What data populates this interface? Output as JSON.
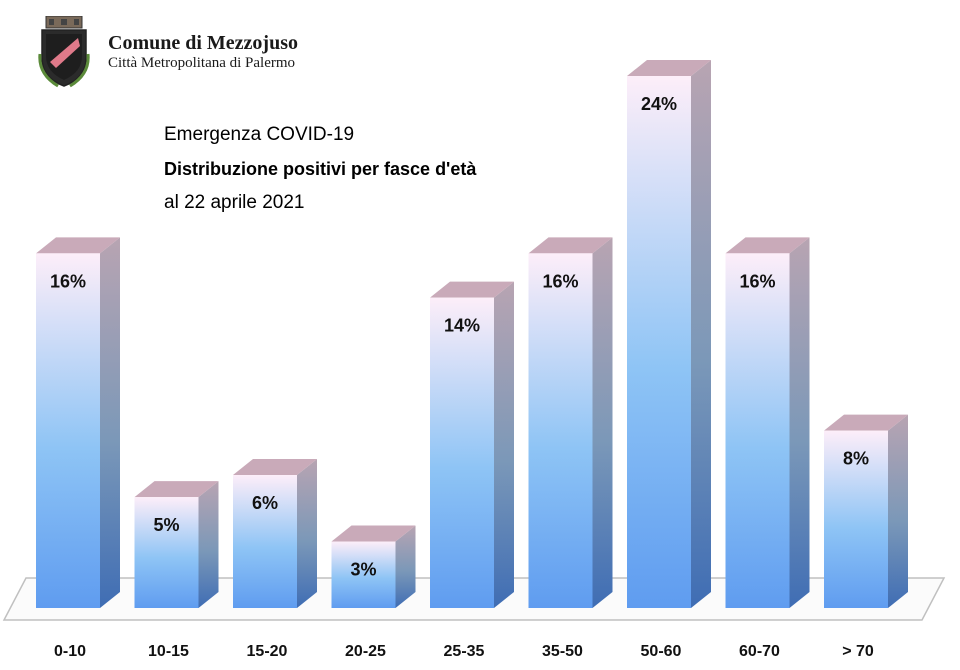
{
  "header": {
    "org_name": "Comune di Mezzojuso",
    "org_subtitle": "Città Metropolitana di Palermo"
  },
  "chart_data": {
    "type": "bar",
    "title": "Emergenza COVID-19",
    "subtitle": "Distribuzione positivi per fasce d'età",
    "date_line": "al 22 aprile 2021",
    "xlabel": "",
    "ylabel": "",
    "categories": [
      "0-10",
      "10-15",
      "15-20",
      "20-25",
      "25-35",
      "35-50",
      "50-60",
      "60-70",
      "> 70"
    ],
    "values": [
      16,
      5,
      6,
      3,
      14,
      16,
      24,
      16,
      8
    ],
    "labels": [
      "16%",
      "5%",
      "6%",
      "3%",
      "14%",
      "16%",
      "24%",
      "16%",
      "8%"
    ],
    "ylim": [
      0,
      24
    ],
    "grid": false,
    "legend": "none",
    "colors": {
      "bar_top": "#fdeef9",
      "bar_mid": "#8ec4f5",
      "bar_bottom": "#5f9cf0",
      "side_top": "#b8a4b2",
      "side_mid": "#7b98b8",
      "side_bottom": "#3f6db4",
      "cap": "#c9aab9",
      "floor": "#c0c0c0"
    }
  }
}
